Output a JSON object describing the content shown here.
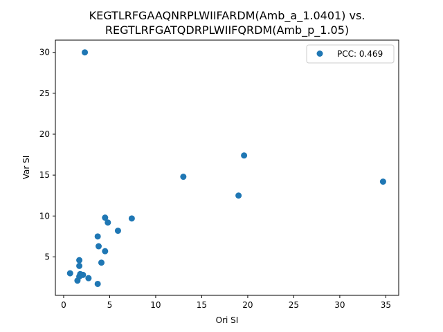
{
  "chart_data": {
    "type": "scatter",
    "title_lines": [
      "KEGTLRFGAAQNRPLWIIFARDM(Amb_a_1.0401) vs.",
      "REGTLRFGATQDRPLWIIFQRDM(Amb_p_1.05)"
    ],
    "xlabel": "Ori SI",
    "ylabel": "Var SI",
    "xlim": [
      -0.9,
      36.4
    ],
    "ylim": [
      0.3,
      31.5
    ],
    "xticks": [
      0,
      5,
      10,
      15,
      20,
      25,
      30,
      35
    ],
    "yticks": [
      5,
      10,
      15,
      20,
      25,
      30
    ],
    "grid": false,
    "legend_position": "top-right",
    "color": "#1f77b4",
    "series": [
      {
        "name": "PCC: 0.469",
        "points": [
          [
            2.3,
            30.0
          ],
          [
            19.6,
            17.4
          ],
          [
            13.0,
            14.8
          ],
          [
            34.7,
            14.2
          ],
          [
            19.0,
            12.5
          ],
          [
            4.5,
            9.8
          ],
          [
            7.4,
            9.7
          ],
          [
            4.8,
            9.2
          ],
          [
            5.9,
            8.2
          ],
          [
            3.7,
            7.5
          ],
          [
            3.8,
            6.3
          ],
          [
            4.5,
            5.7
          ],
          [
            1.7,
            4.6
          ],
          [
            4.1,
            4.3
          ],
          [
            1.7,
            3.9
          ],
          [
            0.7,
            3.0
          ],
          [
            1.8,
            2.9
          ],
          [
            2.1,
            2.8
          ],
          [
            1.7,
            2.6
          ],
          [
            2.7,
            2.4
          ],
          [
            1.5,
            2.1
          ],
          [
            3.7,
            1.7
          ]
        ]
      }
    ]
  }
}
